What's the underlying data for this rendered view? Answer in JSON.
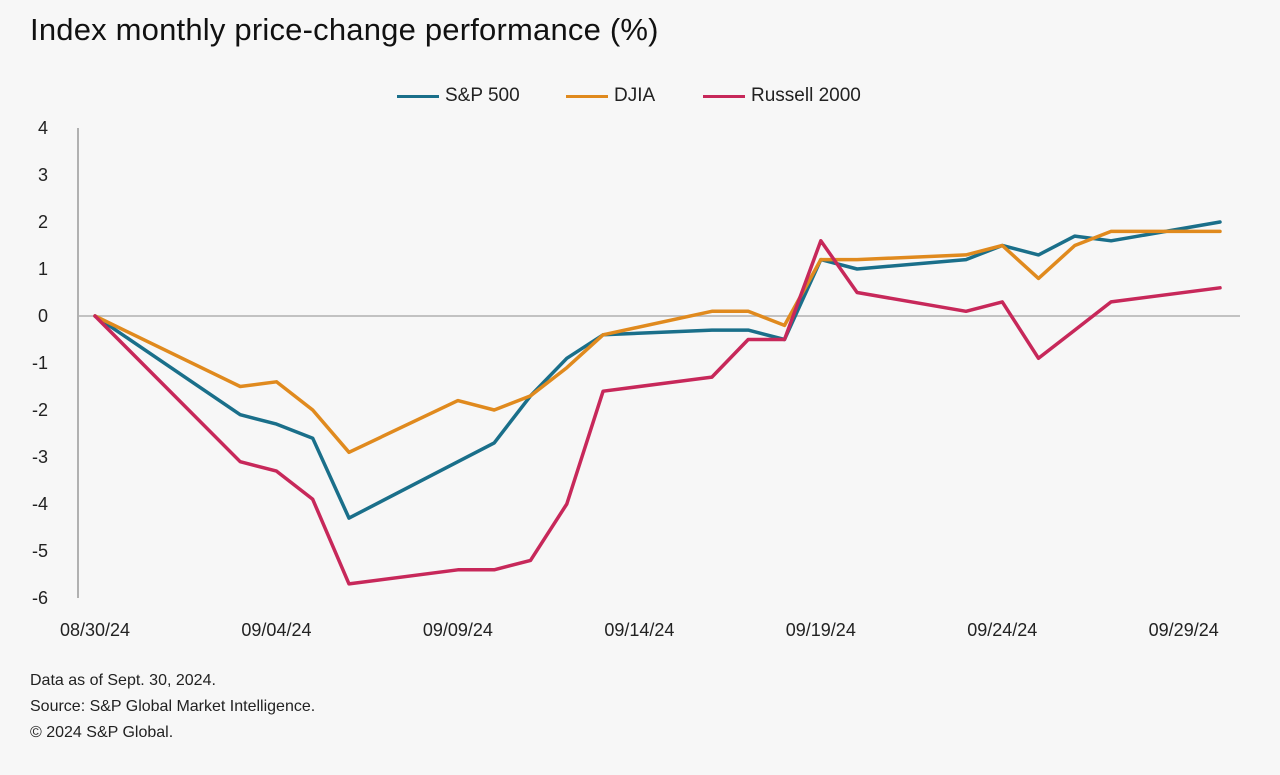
{
  "title": "Index monthly price-change performance (%)",
  "legend": [
    {
      "label": "S&P 500",
      "color": "#1a6f8a"
    },
    {
      "label": "DJIA",
      "color": "#e08a1e"
    },
    {
      "label": "Russell 2000",
      "color": "#c7285a"
    }
  ],
  "footnotes": {
    "line1": "Data as of Sept. 30, 2024.",
    "line2": "Source: S&P Global Market Intelligence.",
    "line3": "© 2024 S&P Global."
  },
  "chart_data": {
    "type": "line",
    "title": "Index monthly price-change performance (%)",
    "xlabel": "",
    "ylabel": "",
    "ylim": [
      -6,
      4
    ],
    "yticks": [
      4,
      3,
      2,
      1,
      0,
      -1,
      -2,
      -3,
      -4,
      -5,
      -6
    ],
    "xticks": [
      "08/30/24",
      "09/04/24",
      "09/09/24",
      "09/14/24",
      "09/19/24",
      "09/24/24",
      "09/29/24"
    ],
    "x": [
      "08/30/24",
      "09/03/24",
      "09/04/24",
      "09/05/24",
      "09/06/24",
      "09/09/24",
      "09/10/24",
      "09/11/24",
      "09/12/24",
      "09/13/24",
      "09/16/24",
      "09/17/24",
      "09/18/24",
      "09/19/24",
      "09/20/24",
      "09/23/24",
      "09/24/24",
      "09/25/24",
      "09/26/24",
      "09/27/24",
      "09/30/24"
    ],
    "grid": false,
    "legend_position": "top",
    "series": [
      {
        "name": "S&P 500",
        "color": "#1a6f8a",
        "values": [
          0,
          -2.1,
          -2.3,
          -2.6,
          -4.3,
          -3.1,
          -2.7,
          -1.7,
          -0.9,
          -0.4,
          -0.3,
          -0.3,
          -0.5,
          1.2,
          1.0,
          1.2,
          1.5,
          1.3,
          1.7,
          1.6,
          2.0
        ]
      },
      {
        "name": "DJIA",
        "color": "#e08a1e",
        "values": [
          0,
          -1.5,
          -1.4,
          -2.0,
          -2.9,
          -1.8,
          -2.0,
          -1.7,
          -1.1,
          -0.4,
          0.1,
          0.1,
          -0.2,
          1.2,
          1.2,
          1.3,
          1.5,
          0.8,
          1.5,
          1.8,
          1.8
        ]
      },
      {
        "name": "Russell 2000",
        "color": "#c7285a",
        "values": [
          0,
          -3.1,
          -3.3,
          -3.9,
          -5.7,
          -5.4,
          -5.4,
          -5.2,
          -4.0,
          -1.6,
          -1.3,
          -0.5,
          -0.5,
          1.6,
          0.5,
          0.1,
          0.3,
          -0.9,
          -0.3,
          0.3,
          0.6
        ]
      }
    ]
  }
}
